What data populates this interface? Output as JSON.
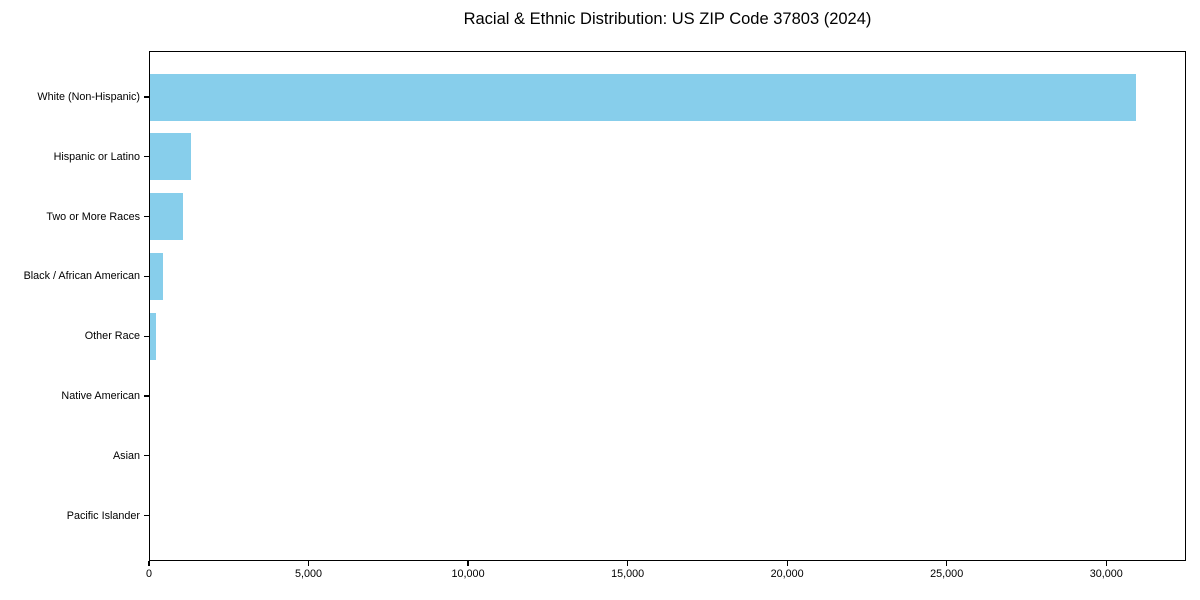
{
  "chart_data": {
    "type": "bar",
    "orientation": "horizontal",
    "title": "Racial & Ethnic Distribution: US ZIP Code 37803 (2024)",
    "categories": [
      "White (Non-Hispanic)",
      "Hispanic or Latino",
      "Two or More Races",
      "Black / African American",
      "Other Race",
      "Native American",
      "Asian",
      "Pacific Islander"
    ],
    "values": [
      30900,
      1280,
      1020,
      400,
      170,
      0,
      0,
      0
    ],
    "xlabel": "",
    "ylabel": "",
    "xlim": [
      0,
      32500
    ],
    "xticks": {
      "values": [
        0,
        5000,
        10000,
        15000,
        20000,
        25000,
        30000
      ],
      "labels": [
        "0",
        "5,000",
        "10,000",
        "15,000",
        "20,000",
        "25,000",
        "30,000"
      ]
    },
    "bar_color": "#87CEEB",
    "frame_color": "#000000",
    "text_color": "#000000",
    "background_color": "#ffffff",
    "grid": false,
    "legend": "none"
  }
}
